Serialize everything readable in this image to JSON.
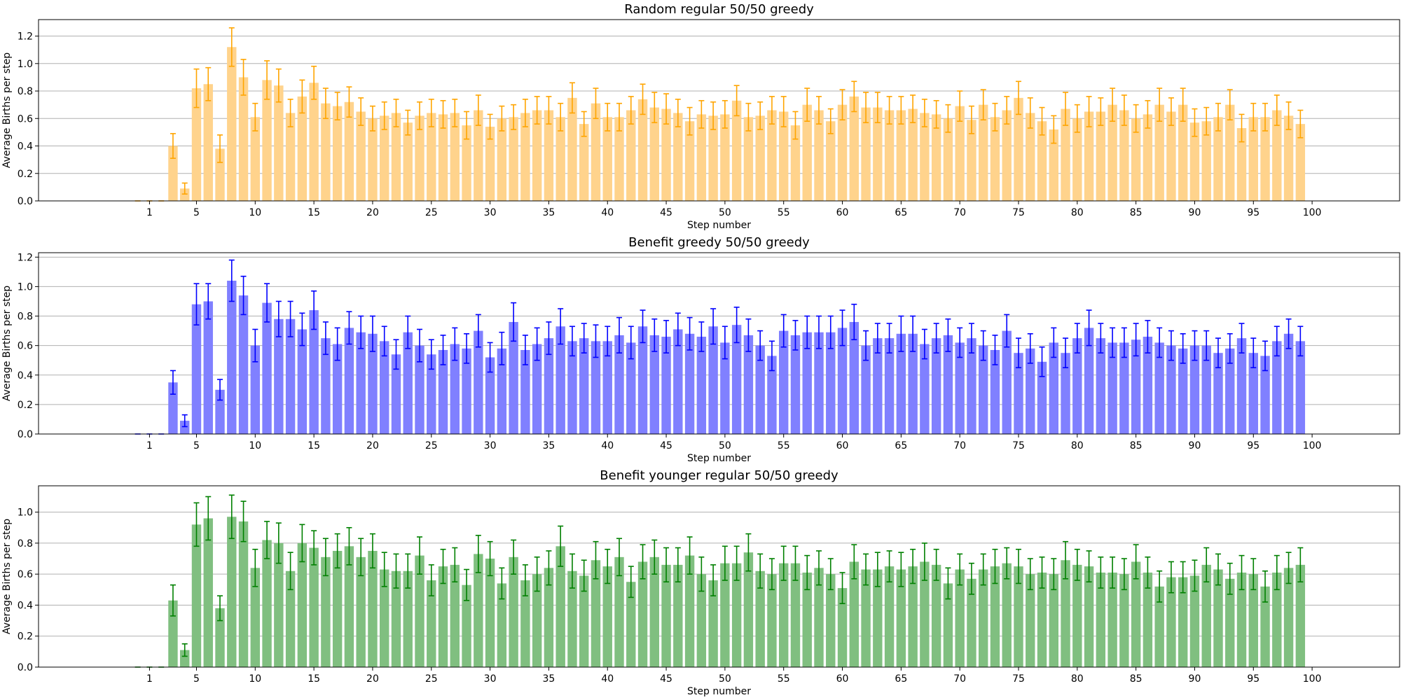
{
  "chart_data": [
    {
      "type": "bar",
      "title": "Random regular 50/50 greedy",
      "xlabel": "Step number",
      "ylabel": "Average Births per step",
      "color": "#ffa500",
      "bar_color": "#ffd38c",
      "err_color": "#ffa500",
      "ylim": [
        0,
        1.32
      ],
      "yticks": [
        "0.0",
        "0.2",
        "0.4",
        "0.6",
        "0.8",
        "1.0",
        "1.2"
      ],
      "xticks": [
        "1",
        "5",
        "10",
        "15",
        "20",
        "25",
        "30",
        "35",
        "40",
        "45",
        "50",
        "55",
        "60",
        "65",
        "70",
        "75",
        "80",
        "85",
        "90",
        "95",
        "100"
      ],
      "grid": "y",
      "x": [
        0,
        1,
        2,
        3,
        4,
        5,
        6,
        7,
        8,
        9,
        10,
        11,
        12,
        13,
        14,
        15,
        16,
        17,
        18,
        19,
        20,
        21,
        22,
        23,
        24,
        25,
        26,
        27,
        28,
        29,
        30,
        31,
        32,
        33,
        34,
        35,
        36,
        37,
        38,
        39,
        40,
        41,
        42,
        43,
        44,
        45,
        46,
        47,
        48,
        49,
        50,
        51,
        52,
        53,
        54,
        55,
        56,
        57,
        58,
        59,
        60,
        61,
        62,
        63,
        64,
        65,
        66,
        67,
        68,
        69,
        70,
        71,
        72,
        73,
        74,
        75,
        76,
        77,
        78,
        79,
        80,
        81,
        82,
        83,
        84,
        85,
        86,
        87,
        88,
        89,
        90,
        91,
        92,
        93,
        94,
        95,
        96,
        97,
        98,
        99
      ],
      "values": [
        0,
        0,
        0,
        0.4,
        0.09,
        0.82,
        0.85,
        0.38,
        1.12,
        0.9,
        0.61,
        0.88,
        0.84,
        0.64,
        0.76,
        0.86,
        0.71,
        0.69,
        0.72,
        0.65,
        0.6,
        0.62,
        0.64,
        0.57,
        0.62,
        0.64,
        0.63,
        0.64,
        0.55,
        0.66,
        0.54,
        0.6,
        0.61,
        0.64,
        0.66,
        0.66,
        0.61,
        0.75,
        0.56,
        0.71,
        0.61,
        0.61,
        0.66,
        0.74,
        0.68,
        0.67,
        0.64,
        0.58,
        0.63,
        0.62,
        0.63,
        0.73,
        0.61,
        0.62,
        0.66,
        0.65,
        0.55,
        0.7,
        0.66,
        0.58,
        0.7,
        0.76,
        0.68,
        0.68,
        0.66,
        0.66,
        0.67,
        0.64,
        0.63,
        0.6,
        0.69,
        0.59,
        0.7,
        0.61,
        0.66,
        0.75,
        0.64,
        0.58,
        0.52,
        0.67,
        0.6,
        0.65,
        0.65,
        0.7,
        0.66,
        0.6,
        0.63,
        0.7,
        0.65,
        0.7,
        0.57,
        0.58,
        0.61,
        0.7,
        0.53,
        0.61,
        0.61,
        0.66,
        0.62,
        0.56
      ],
      "errors": [
        0,
        0,
        0,
        0.09,
        0.04,
        0.14,
        0.12,
        0.1,
        0.14,
        0.13,
        0.1,
        0.14,
        0.12,
        0.1,
        0.12,
        0.12,
        0.11,
        0.1,
        0.11,
        0.1,
        0.09,
        0.1,
        0.1,
        0.09,
        0.1,
        0.1,
        0.1,
        0.1,
        0.1,
        0.11,
        0.09,
        0.09,
        0.09,
        0.1,
        0.1,
        0.1,
        0.1,
        0.11,
        0.09,
        0.11,
        0.1,
        0.1,
        0.1,
        0.11,
        0.11,
        0.11,
        0.1,
        0.1,
        0.1,
        0.1,
        0.1,
        0.11,
        0.1,
        0.1,
        0.1,
        0.11,
        0.1,
        0.12,
        0.1,
        0.09,
        0.11,
        0.11,
        0.11,
        0.11,
        0.1,
        0.1,
        0.1,
        0.1,
        0.1,
        0.1,
        0.11,
        0.1,
        0.11,
        0.1,
        0.1,
        0.12,
        0.11,
        0.1,
        0.1,
        0.12,
        0.1,
        0.11,
        0.1,
        0.12,
        0.11,
        0.1,
        0.1,
        0.12,
        0.1,
        0.12,
        0.1,
        0.1,
        0.1,
        0.11,
        0.1,
        0.1,
        0.1,
        0.11,
        0.1,
        0.1
      ]
    },
    {
      "type": "bar",
      "title": "Benefit greedy 50/50 greedy",
      "xlabel": "Step number",
      "ylabel": "Average Births per step",
      "color": "#0000ff",
      "bar_color": "#8080ff",
      "err_color": "#0000ff",
      "ylim": [
        0,
        1.23
      ],
      "yticks": [
        "0.0",
        "0.2",
        "0.4",
        "0.6",
        "0.8",
        "1.0",
        "1.2"
      ],
      "xticks": [
        "1",
        "5",
        "10",
        "15",
        "20",
        "25",
        "30",
        "35",
        "40",
        "45",
        "50",
        "55",
        "60",
        "65",
        "70",
        "75",
        "80",
        "85",
        "90",
        "95",
        "100"
      ],
      "grid": "y",
      "x": [
        0,
        1,
        2,
        3,
        4,
        5,
        6,
        7,
        8,
        9,
        10,
        11,
        12,
        13,
        14,
        15,
        16,
        17,
        18,
        19,
        20,
        21,
        22,
        23,
        24,
        25,
        26,
        27,
        28,
        29,
        30,
        31,
        32,
        33,
        34,
        35,
        36,
        37,
        38,
        39,
        40,
        41,
        42,
        43,
        44,
        45,
        46,
        47,
        48,
        49,
        50,
        51,
        52,
        53,
        54,
        55,
        56,
        57,
        58,
        59,
        60,
        61,
        62,
        63,
        64,
        65,
        66,
        67,
        68,
        69,
        70,
        71,
        72,
        73,
        74,
        75,
        76,
        77,
        78,
        79,
        80,
        81,
        82,
        83,
        84,
        85,
        86,
        87,
        88,
        89,
        90,
        91,
        92,
        93,
        94,
        95,
        96,
        97,
        98,
        99
      ],
      "values": [
        0,
        0,
        0,
        0.35,
        0.09,
        0.88,
        0.9,
        0.3,
        1.04,
        0.94,
        0.6,
        0.89,
        0.78,
        0.78,
        0.71,
        0.84,
        0.65,
        0.61,
        0.72,
        0.69,
        0.68,
        0.63,
        0.54,
        0.69,
        0.6,
        0.54,
        0.57,
        0.61,
        0.58,
        0.7,
        0.52,
        0.58,
        0.76,
        0.57,
        0.61,
        0.65,
        0.73,
        0.63,
        0.65,
        0.63,
        0.63,
        0.67,
        0.62,
        0.73,
        0.67,
        0.66,
        0.71,
        0.68,
        0.66,
        0.73,
        0.62,
        0.74,
        0.67,
        0.6,
        0.53,
        0.7,
        0.67,
        0.69,
        0.69,
        0.69,
        0.72,
        0.76,
        0.6,
        0.65,
        0.65,
        0.68,
        0.68,
        0.61,
        0.65,
        0.67,
        0.62,
        0.65,
        0.6,
        0.57,
        0.7,
        0.55,
        0.58,
        0.49,
        0.62,
        0.55,
        0.65,
        0.72,
        0.65,
        0.62,
        0.62,
        0.64,
        0.66,
        0.62,
        0.6,
        0.58,
        0.6,
        0.6,
        0.55,
        0.58,
        0.65,
        0.55,
        0.53,
        0.63,
        0.68,
        0.63
      ],
      "errors": [
        0,
        0,
        0,
        0.08,
        0.04,
        0.14,
        0.12,
        0.07,
        0.14,
        0.13,
        0.11,
        0.13,
        0.12,
        0.12,
        0.11,
        0.13,
        0.11,
        0.11,
        0.11,
        0.11,
        0.12,
        0.1,
        0.1,
        0.11,
        0.11,
        0.1,
        0.1,
        0.11,
        0.1,
        0.11,
        0.1,
        0.11,
        0.13,
        0.1,
        0.11,
        0.11,
        0.12,
        0.1,
        0.1,
        0.11,
        0.1,
        0.12,
        0.11,
        0.11,
        0.11,
        0.11,
        0.11,
        0.11,
        0.1,
        0.12,
        0.11,
        0.12,
        0.11,
        0.1,
        0.1,
        0.11,
        0.1,
        0.11,
        0.11,
        0.11,
        0.12,
        0.12,
        0.1,
        0.1,
        0.1,
        0.12,
        0.12,
        0.1,
        0.1,
        0.11,
        0.1,
        0.1,
        0.1,
        0.1,
        0.11,
        0.1,
        0.1,
        0.1,
        0.1,
        0.1,
        0.1,
        0.12,
        0.1,
        0.1,
        0.1,
        0.11,
        0.11,
        0.1,
        0.1,
        0.1,
        0.1,
        0.1,
        0.1,
        0.1,
        0.1,
        0.1,
        0.1,
        0.1,
        0.1,
        0.1
      ]
    },
    {
      "type": "bar",
      "title": "Benefit younger regular 50/50 greedy",
      "xlabel": "Step number",
      "ylabel": "Average Births per step",
      "color": "#008000",
      "bar_color": "#80bf80",
      "err_color": "#008000",
      "ylim": [
        0,
        1.17
      ],
      "yticks": [
        "0.0",
        "0.2",
        "0.4",
        "0.6",
        "0.8",
        "1.0"
      ],
      "xticks": [
        "1",
        "5",
        "10",
        "15",
        "20",
        "25",
        "30",
        "35",
        "40",
        "45",
        "50",
        "55",
        "60",
        "65",
        "70",
        "75",
        "80",
        "85",
        "90",
        "95",
        "100"
      ],
      "grid": "y",
      "x": [
        0,
        1,
        2,
        3,
        4,
        5,
        6,
        7,
        8,
        9,
        10,
        11,
        12,
        13,
        14,
        15,
        16,
        17,
        18,
        19,
        20,
        21,
        22,
        23,
        24,
        25,
        26,
        27,
        28,
        29,
        30,
        31,
        32,
        33,
        34,
        35,
        36,
        37,
        38,
        39,
        40,
        41,
        42,
        43,
        44,
        45,
        46,
        47,
        48,
        49,
        50,
        51,
        52,
        53,
        54,
        55,
        56,
        57,
        58,
        59,
        60,
        61,
        62,
        63,
        64,
        65,
        66,
        67,
        68,
        69,
        70,
        71,
        72,
        73,
        74,
        75,
        76,
        77,
        78,
        79,
        80,
        81,
        82,
        83,
        84,
        85,
        86,
        87,
        88,
        89,
        90,
        91,
        92,
        93,
        94,
        95,
        96,
        97,
        98,
        99
      ],
      "values": [
        0,
        0,
        0,
        0.43,
        0.11,
        0.92,
        0.96,
        0.38,
        0.97,
        0.94,
        0.64,
        0.82,
        0.8,
        0.62,
        0.8,
        0.77,
        0.71,
        0.75,
        0.78,
        0.71,
        0.75,
        0.63,
        0.62,
        0.62,
        0.72,
        0.56,
        0.65,
        0.66,
        0.53,
        0.73,
        0.7,
        0.54,
        0.71,
        0.56,
        0.6,
        0.64,
        0.78,
        0.62,
        0.59,
        0.69,
        0.65,
        0.71,
        0.55,
        0.68,
        0.71,
        0.66,
        0.66,
        0.72,
        0.6,
        0.56,
        0.67,
        0.67,
        0.74,
        0.62,
        0.6,
        0.67,
        0.67,
        0.61,
        0.64,
        0.6,
        0.51,
        0.68,
        0.63,
        0.63,
        0.65,
        0.63,
        0.65,
        0.68,
        0.66,
        0.54,
        0.63,
        0.57,
        0.63,
        0.65,
        0.67,
        0.65,
        0.6,
        0.61,
        0.6,
        0.69,
        0.66,
        0.65,
        0.61,
        0.61,
        0.6,
        0.68,
        0.61,
        0.52,
        0.58,
        0.58,
        0.59,
        0.66,
        0.63,
        0.57,
        0.61,
        0.6,
        0.52,
        0.61,
        0.64,
        0.66
      ],
      "errors": [
        0,
        0,
        0,
        0.1,
        0.04,
        0.14,
        0.14,
        0.08,
        0.14,
        0.13,
        0.12,
        0.12,
        0.13,
        0.12,
        0.12,
        0.11,
        0.12,
        0.11,
        0.12,
        0.12,
        0.11,
        0.11,
        0.11,
        0.11,
        0.12,
        0.1,
        0.11,
        0.11,
        0.1,
        0.12,
        0.11,
        0.1,
        0.11,
        0.1,
        0.11,
        0.11,
        0.13,
        0.11,
        0.1,
        0.12,
        0.11,
        0.12,
        0.1,
        0.11,
        0.11,
        0.11,
        0.11,
        0.12,
        0.11,
        0.1,
        0.11,
        0.11,
        0.12,
        0.11,
        0.1,
        0.11,
        0.11,
        0.11,
        0.11,
        0.1,
        0.1,
        0.11,
        0.1,
        0.11,
        0.1,
        0.11,
        0.11,
        0.12,
        0.1,
        0.1,
        0.1,
        0.1,
        0.1,
        0.11,
        0.1,
        0.11,
        0.1,
        0.1,
        0.1,
        0.12,
        0.1,
        0.1,
        0.1,
        0.1,
        0.1,
        0.11,
        0.1,
        0.1,
        0.1,
        0.1,
        0.1,
        0.11,
        0.1,
        0.1,
        0.11,
        0.1,
        0.1,
        0.11,
        0.1,
        0.11
      ]
    }
  ]
}
